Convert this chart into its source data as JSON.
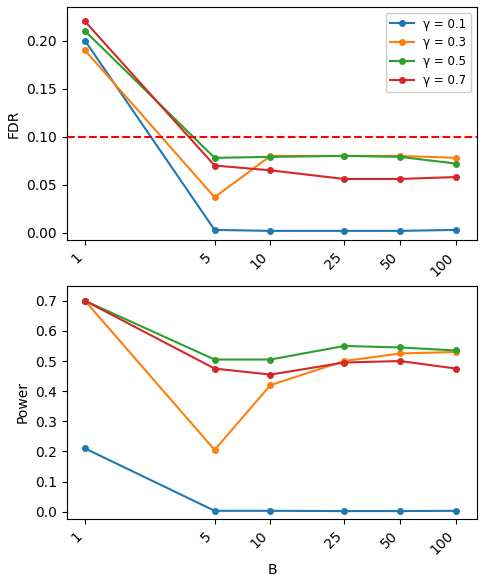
{
  "x_values": [
    1,
    5,
    10,
    25,
    50,
    100
  ],
  "x_ticks": [
    1,
    5,
    10,
    25,
    50,
    100
  ],
  "x_tick_labels": [
    "1",
    "5",
    "10",
    "25",
    "50",
    "100"
  ],
  "fdr": {
    "gamma_0.1": [
      0.2,
      0.003,
      0.002,
      0.002,
      0.002,
      0.003
    ],
    "gamma_0.3": [
      0.19,
      0.037,
      0.08,
      0.08,
      0.08,
      0.078
    ],
    "gamma_0.5": [
      0.21,
      0.078,
      0.079,
      0.08,
      0.079,
      0.072
    ],
    "gamma_0.7": [
      0.22,
      0.07,
      0.065,
      0.056,
      0.056,
      0.058
    ]
  },
  "power": {
    "gamma_0.1": [
      0.21,
      0.003,
      0.003,
      0.002,
      0.002,
      0.003
    ],
    "gamma_0.3": [
      0.7,
      0.205,
      0.42,
      0.5,
      0.525,
      0.53
    ],
    "gamma_0.5": [
      0.7,
      0.505,
      0.505,
      0.55,
      0.545,
      0.535
    ],
    "gamma_0.7": [
      0.7,
      0.475,
      0.455,
      0.495,
      0.5,
      0.475
    ]
  },
  "fdr_hline": 0.1,
  "colors": {
    "gamma_0.1": "#1f77b4",
    "gamma_0.3": "#ff7f0e",
    "gamma_0.5": "#2ca02c",
    "gamma_0.7": "#d62728"
  },
  "legend_labels": {
    "gamma_0.1": "γ = 0.1",
    "gamma_0.3": "γ = 0.3",
    "gamma_0.5": "γ = 0.5",
    "gamma_0.7": "γ = 0.7"
  },
  "fdr_ylabel": "FDR",
  "power_ylabel": "Power",
  "xlabel": "B",
  "fdr_ylim": [
    -0.008,
    0.235
  ],
  "power_ylim": [
    -0.025,
    0.75
  ]
}
